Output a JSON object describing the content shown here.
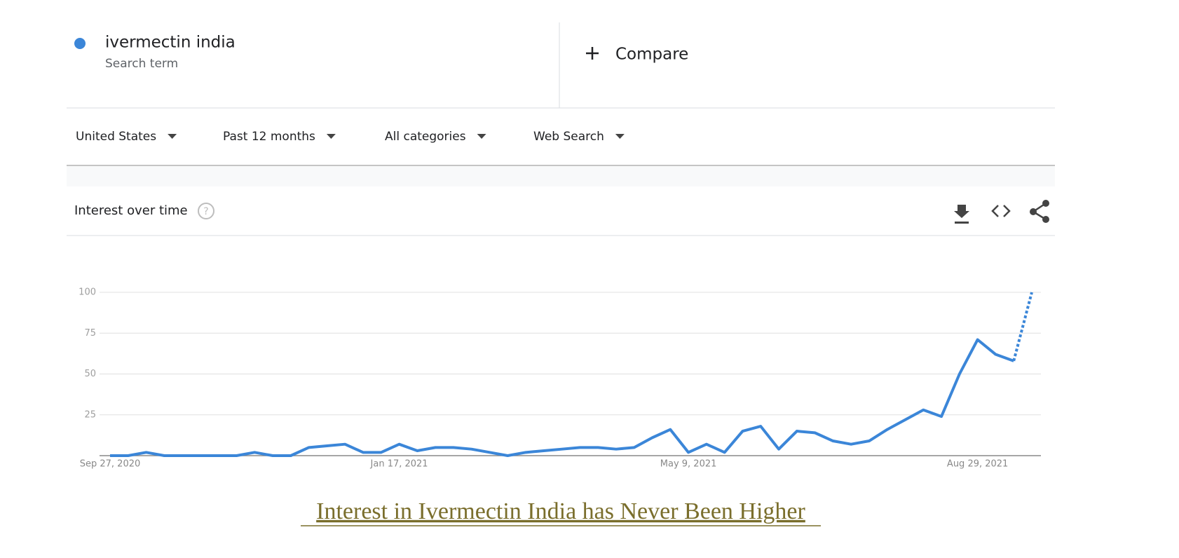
{
  "search_term": {
    "name": "ivermectin india",
    "kind": "Search term"
  },
  "compare": "Compare",
  "filters": [
    "United States",
    "Past 12 months",
    "All categories",
    "Web Search"
  ],
  "panel_title": "Interest over time",
  "caption": "Interest in Ivermectin India has Never Been Higher",
  "chart_data": {
    "type": "line",
    "categories": [
      "Sep 27, 2020",
      null,
      null,
      null,
      null,
      null,
      null,
      null,
      null,
      null,
      null,
      null,
      null,
      null,
      null,
      null,
      "Jan 17, 2021",
      null,
      null,
      null,
      null,
      null,
      null,
      null,
      null,
      null,
      null,
      null,
      null,
      null,
      null,
      null,
      "May 9, 2021",
      null,
      null,
      null,
      null,
      null,
      null,
      null,
      null,
      null,
      null,
      null,
      null,
      null,
      null,
      null,
      "Aug 29, 2021",
      null,
      null,
      null
    ],
    "series": [
      {
        "name": "ivermectin india",
        "color": "#3b86d8",
        "values": [
          0,
          0,
          2,
          0,
          0,
          0,
          0,
          0,
          2,
          0,
          0,
          5,
          6,
          7,
          2,
          2,
          7,
          3,
          5,
          5,
          4,
          2,
          0,
          2,
          3,
          4,
          5,
          5,
          4,
          5,
          11,
          16,
          2,
          7,
          2,
          15,
          18,
          4,
          15,
          14,
          9,
          7,
          9,
          16,
          22,
          28,
          24,
          50,
          71,
          62,
          58,
          100
        ]
      }
    ],
    "ylim": [
      0,
      100
    ],
    "yticks": [
      25,
      50,
      75,
      100
    ],
    "grid": true,
    "partial_last_point": true
  }
}
